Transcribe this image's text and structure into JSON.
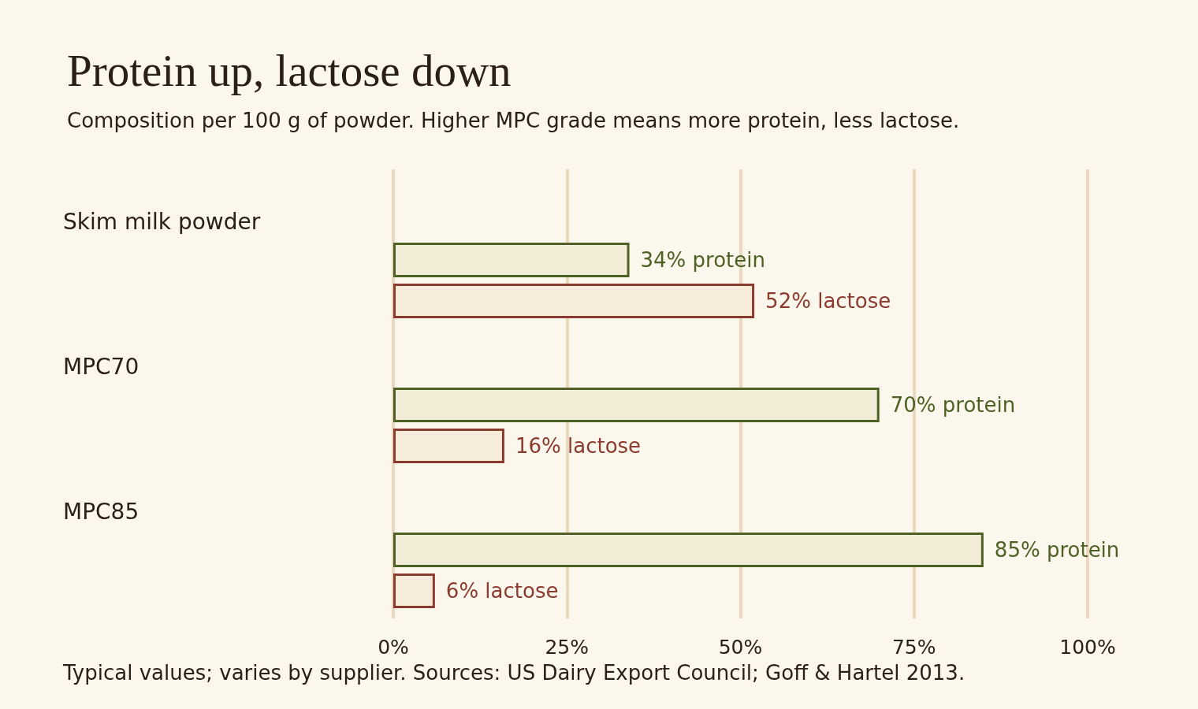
{
  "chart_data": {
    "type": "bar",
    "orientation": "horizontal",
    "title": "Protein up, lactose down",
    "subtitle": "Composition per 100 g of powder. Higher MPC grade means more protein, less lactose.",
    "categories": [
      "Skim milk powder",
      "MPC70",
      "MPC85"
    ],
    "series": [
      {
        "color": "#4e6124",
        "values": [
          34,
          70,
          85
        ],
        "value_labels": [
          "34% protein",
          "70% protein",
          "85% protein"
        ]
      },
      {
        "color": "#8b3a2e",
        "values": [
          52,
          16,
          6
        ],
        "value_labels": [
          "52% lactose",
          "16% lactose",
          "6% lactose"
        ]
      }
    ],
    "xlim": [
      0,
      100
    ],
    "xticks": [
      {
        "value": 0,
        "label": "0%"
      },
      {
        "value": 25,
        "label": "25%"
      },
      {
        "value": 50,
        "label": "50%"
      },
      {
        "value": 75,
        "label": "75%"
      },
      {
        "value": 100,
        "label": "100%"
      }
    ],
    "grid": "x",
    "annotations": [
      "Typical values; varies by supplier. Sources: US Dairy Export Council; Goff & Hartel 2013."
    ]
  }
}
